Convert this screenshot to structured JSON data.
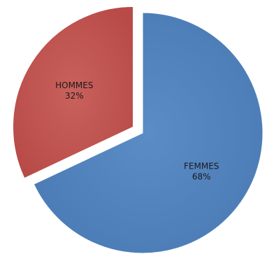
{
  "chart_data": {
    "type": "pie",
    "title": "",
    "slices": [
      {
        "label": "FEMMES",
        "value": 68,
        "display": "68%",
        "color": "#4F81BD",
        "exploded": false
      },
      {
        "label": "HOMMES",
        "value": 32,
        "display": "32%",
        "color": "#C0504D",
        "exploded": true
      }
    ],
    "start_angle_deg": 0,
    "direction": "clockwise",
    "legend": "none"
  }
}
